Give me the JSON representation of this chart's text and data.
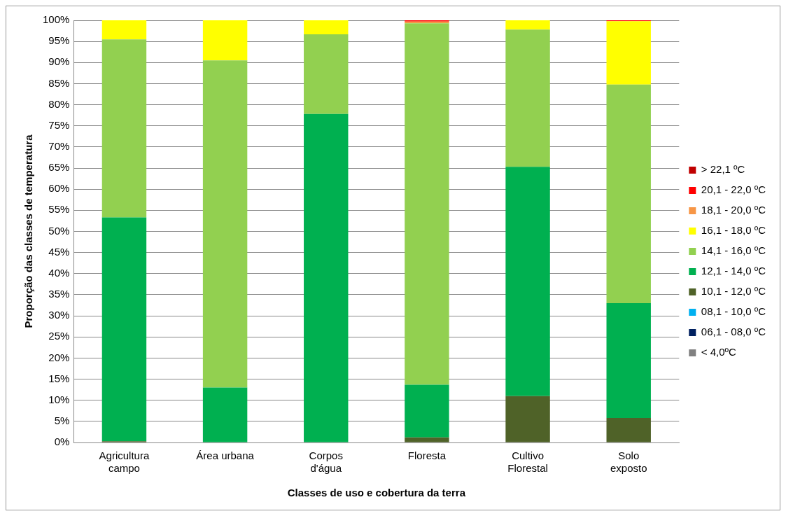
{
  "chart_data": {
    "type": "bar",
    "stacked": true,
    "xlabel": "Classes de uso e cobertura da terra",
    "ylabel": "Proporção das classes de temperatura",
    "categories": [
      "Agricultura\ncampo",
      "Área urbana",
      "Corpos\nd'água",
      "Floresta",
      "Cultivo\nFlorestal",
      "Solo\nexposto"
    ],
    "series": [
      {
        "name": "< 4,0ºC",
        "color": "#808080",
        "values": [
          0,
          0,
          0,
          0,
          0,
          0
        ]
      },
      {
        "name": "06,1 - 08,0 ºC",
        "color": "#002060",
        "values": [
          0,
          0,
          0,
          0,
          0,
          0
        ]
      },
      {
        "name": "08,1 - 10,0 ºC",
        "color": "#00b0f0",
        "values": [
          0,
          0,
          0,
          0,
          0,
          0
        ]
      },
      {
        "name": "10,1 - 12,0 ºC",
        "color": "#4f6228",
        "values": [
          0.3,
          0,
          0,
          1.2,
          11,
          5.8
        ]
      },
      {
        "name": "12,1 - 14,0 ºC",
        "color": "#00b050",
        "values": [
          53,
          13,
          77.8,
          12.5,
          54.3,
          27.2
        ]
      },
      {
        "name": "14,1 - 16,0 ºC",
        "color": "#92d050",
        "values": [
          42.2,
          77.5,
          18.9,
          85.6,
          32.5,
          51.8
        ]
      },
      {
        "name": "16,1 - 18,0 ºC",
        "color": "#ffff00",
        "values": [
          4.5,
          9.5,
          3.3,
          null,
          2.2,
          15
        ]
      },
      {
        "name": "18,1 - 20,0 ºC",
        "color": "#f79646",
        "values": [
          0,
          0,
          0,
          0.4,
          0,
          0
        ]
      },
      {
        "name": "20,1 - 22,0 ºC",
        "color": "#ff0000",
        "values": [
          0,
          0,
          0,
          0.3,
          0,
          0.2
        ]
      },
      {
        "name": "> 22,1 ºC",
        "color": "#c00000",
        "values": [
          0,
          0,
          0,
          0,
          0,
          0
        ]
      }
    ],
    "ylim": [
      0,
      100
    ],
    "yticks": [
      {
        "value": 0,
        "label": "0%"
      },
      {
        "value": 5,
        "label": "5%"
      },
      {
        "value": 10,
        "label": "10%"
      },
      {
        "value": 15,
        "label": "15%"
      },
      {
        "value": 20,
        "label": "20%"
      },
      {
        "value": 25,
        "label": "25%"
      },
      {
        "value": 30,
        "label": "30%"
      },
      {
        "value": 35,
        "label": "35%"
      },
      {
        "value": 40,
        "label": "40%"
      },
      {
        "value": 45,
        "label": "45%"
      },
      {
        "value": 50,
        "label": "50%"
      },
      {
        "value": 55,
        "label": "55%"
      },
      {
        "value": 60,
        "label": "60%"
      },
      {
        "value": 65,
        "label": "65%"
      },
      {
        "value": 70,
        "label": "70%"
      },
      {
        "value": 75,
        "label": "75%"
      },
      {
        "value": 80,
        "label": "80%"
      },
      {
        "value": 85,
        "label": "85%"
      },
      {
        "value": 90,
        "label": "90%"
      },
      {
        "value": 95,
        "label": "95%"
      },
      {
        "value": 100,
        "label": "100%"
      }
    ],
    "grid": "y",
    "legend": "right"
  }
}
